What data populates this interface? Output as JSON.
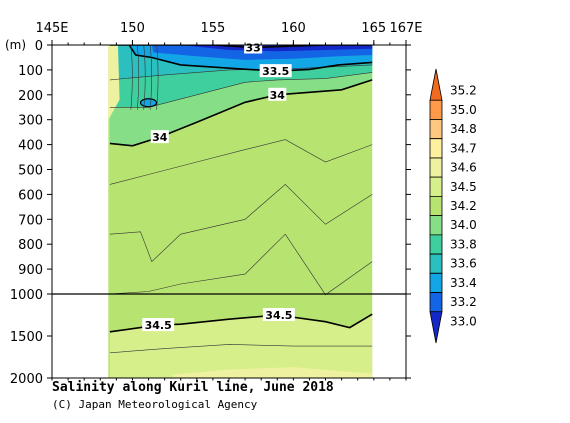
{
  "figure": {
    "title": "Salinity along Kuril line, June 2018",
    "credit": "(C) Japan Meteorological Agency",
    "y_unit": "(m)"
  },
  "chart_data": {
    "type": "heatmap",
    "title": "Salinity along Kuril line, June 2018",
    "x_ticks": [
      {
        "value": 145,
        "label": "145E"
      },
      {
        "value": 150,
        "label": "150"
      },
      {
        "value": 155,
        "label": "155"
      },
      {
        "value": 160,
        "label": "160"
      },
      {
        "value": 165,
        "label": "165"
      },
      {
        "value": 167,
        "label": "167E"
      }
    ],
    "xlim": [
      145,
      167
    ],
    "data_lon_range": [
      148.5,
      164.9
    ],
    "y_ticks_upper": [
      "0",
      "100",
      "200",
      "300",
      "400",
      "500",
      "600",
      "700",
      "800",
      "900",
      "1000"
    ],
    "y_ticks_lower": [
      "1500",
      "2000"
    ],
    "ylim": [
      0,
      2000
    ],
    "y_scale_break": 1000,
    "color_levels": [
      "35.2",
      "35.0",
      "34.8",
      "34.7",
      "34.6",
      "34.5",
      "34.2",
      "34.0",
      "33.8",
      "33.6",
      "33.4",
      "33.2",
      "33.0"
    ],
    "colorbar_colors": [
      "#f06a20",
      "#ff9a4a",
      "#ffc880",
      "#fff0a0",
      "#eef2a0",
      "#d7ef8a",
      "#b7e470",
      "#86df86",
      "#3fcf9f",
      "#2bbfbf",
      "#12a6e6",
      "#1464e6",
      "#1428c8"
    ],
    "contour_labels": [
      {
        "value": "33",
        "lon": 157.5,
        "depth": 10
      },
      {
        "value": "33.5",
        "lon": 158.9,
        "depth": 105
      },
      {
        "value": "34",
        "lon": 159.0,
        "depth": 200
      },
      {
        "value": "34",
        "lon": 151.7,
        "depth": 370
      },
      {
        "value": "34.5",
        "lon": 159.1,
        "depth": 1250
      },
      {
        "value": "34.5",
        "lon": 151.6,
        "depth": 1370
      }
    ],
    "isolines": [
      {
        "value": 33.0,
        "points": [
          [
            148.6,
            0
          ],
          [
            151,
            0
          ],
          [
            155,
            0
          ],
          [
            157.5,
            10
          ],
          [
            162,
            0
          ],
          [
            164.9,
            0
          ]
        ]
      },
      {
        "value": 33.5,
        "points": [
          [
            149.8,
            0
          ],
          [
            150.2,
            40
          ],
          [
            151.2,
            50
          ],
          [
            153,
            80
          ],
          [
            156.5,
            95
          ],
          [
            159,
            105
          ],
          [
            161,
            98
          ],
          [
            162.8,
            80
          ],
          [
            164.9,
            70
          ]
        ]
      },
      {
        "value": 34.0,
        "points": [
          [
            148.6,
            395
          ],
          [
            150,
            405
          ],
          [
            151.7,
            370
          ],
          [
            154,
            310
          ],
          [
            157,
            230
          ],
          [
            159,
            200
          ],
          [
            161,
            190
          ],
          [
            163,
            180
          ],
          [
            164.9,
            140
          ]
        ]
      },
      {
        "value": 34.5,
        "points": [
          [
            148.6,
            1450
          ],
          [
            151.6,
            1370
          ],
          [
            153,
            1360
          ],
          [
            156,
            1300
          ],
          [
            159,
            1250
          ],
          [
            162,
            1330
          ],
          [
            163.5,
            1400
          ],
          [
            164.9,
            1240
          ]
        ]
      }
    ],
    "grid": false
  }
}
